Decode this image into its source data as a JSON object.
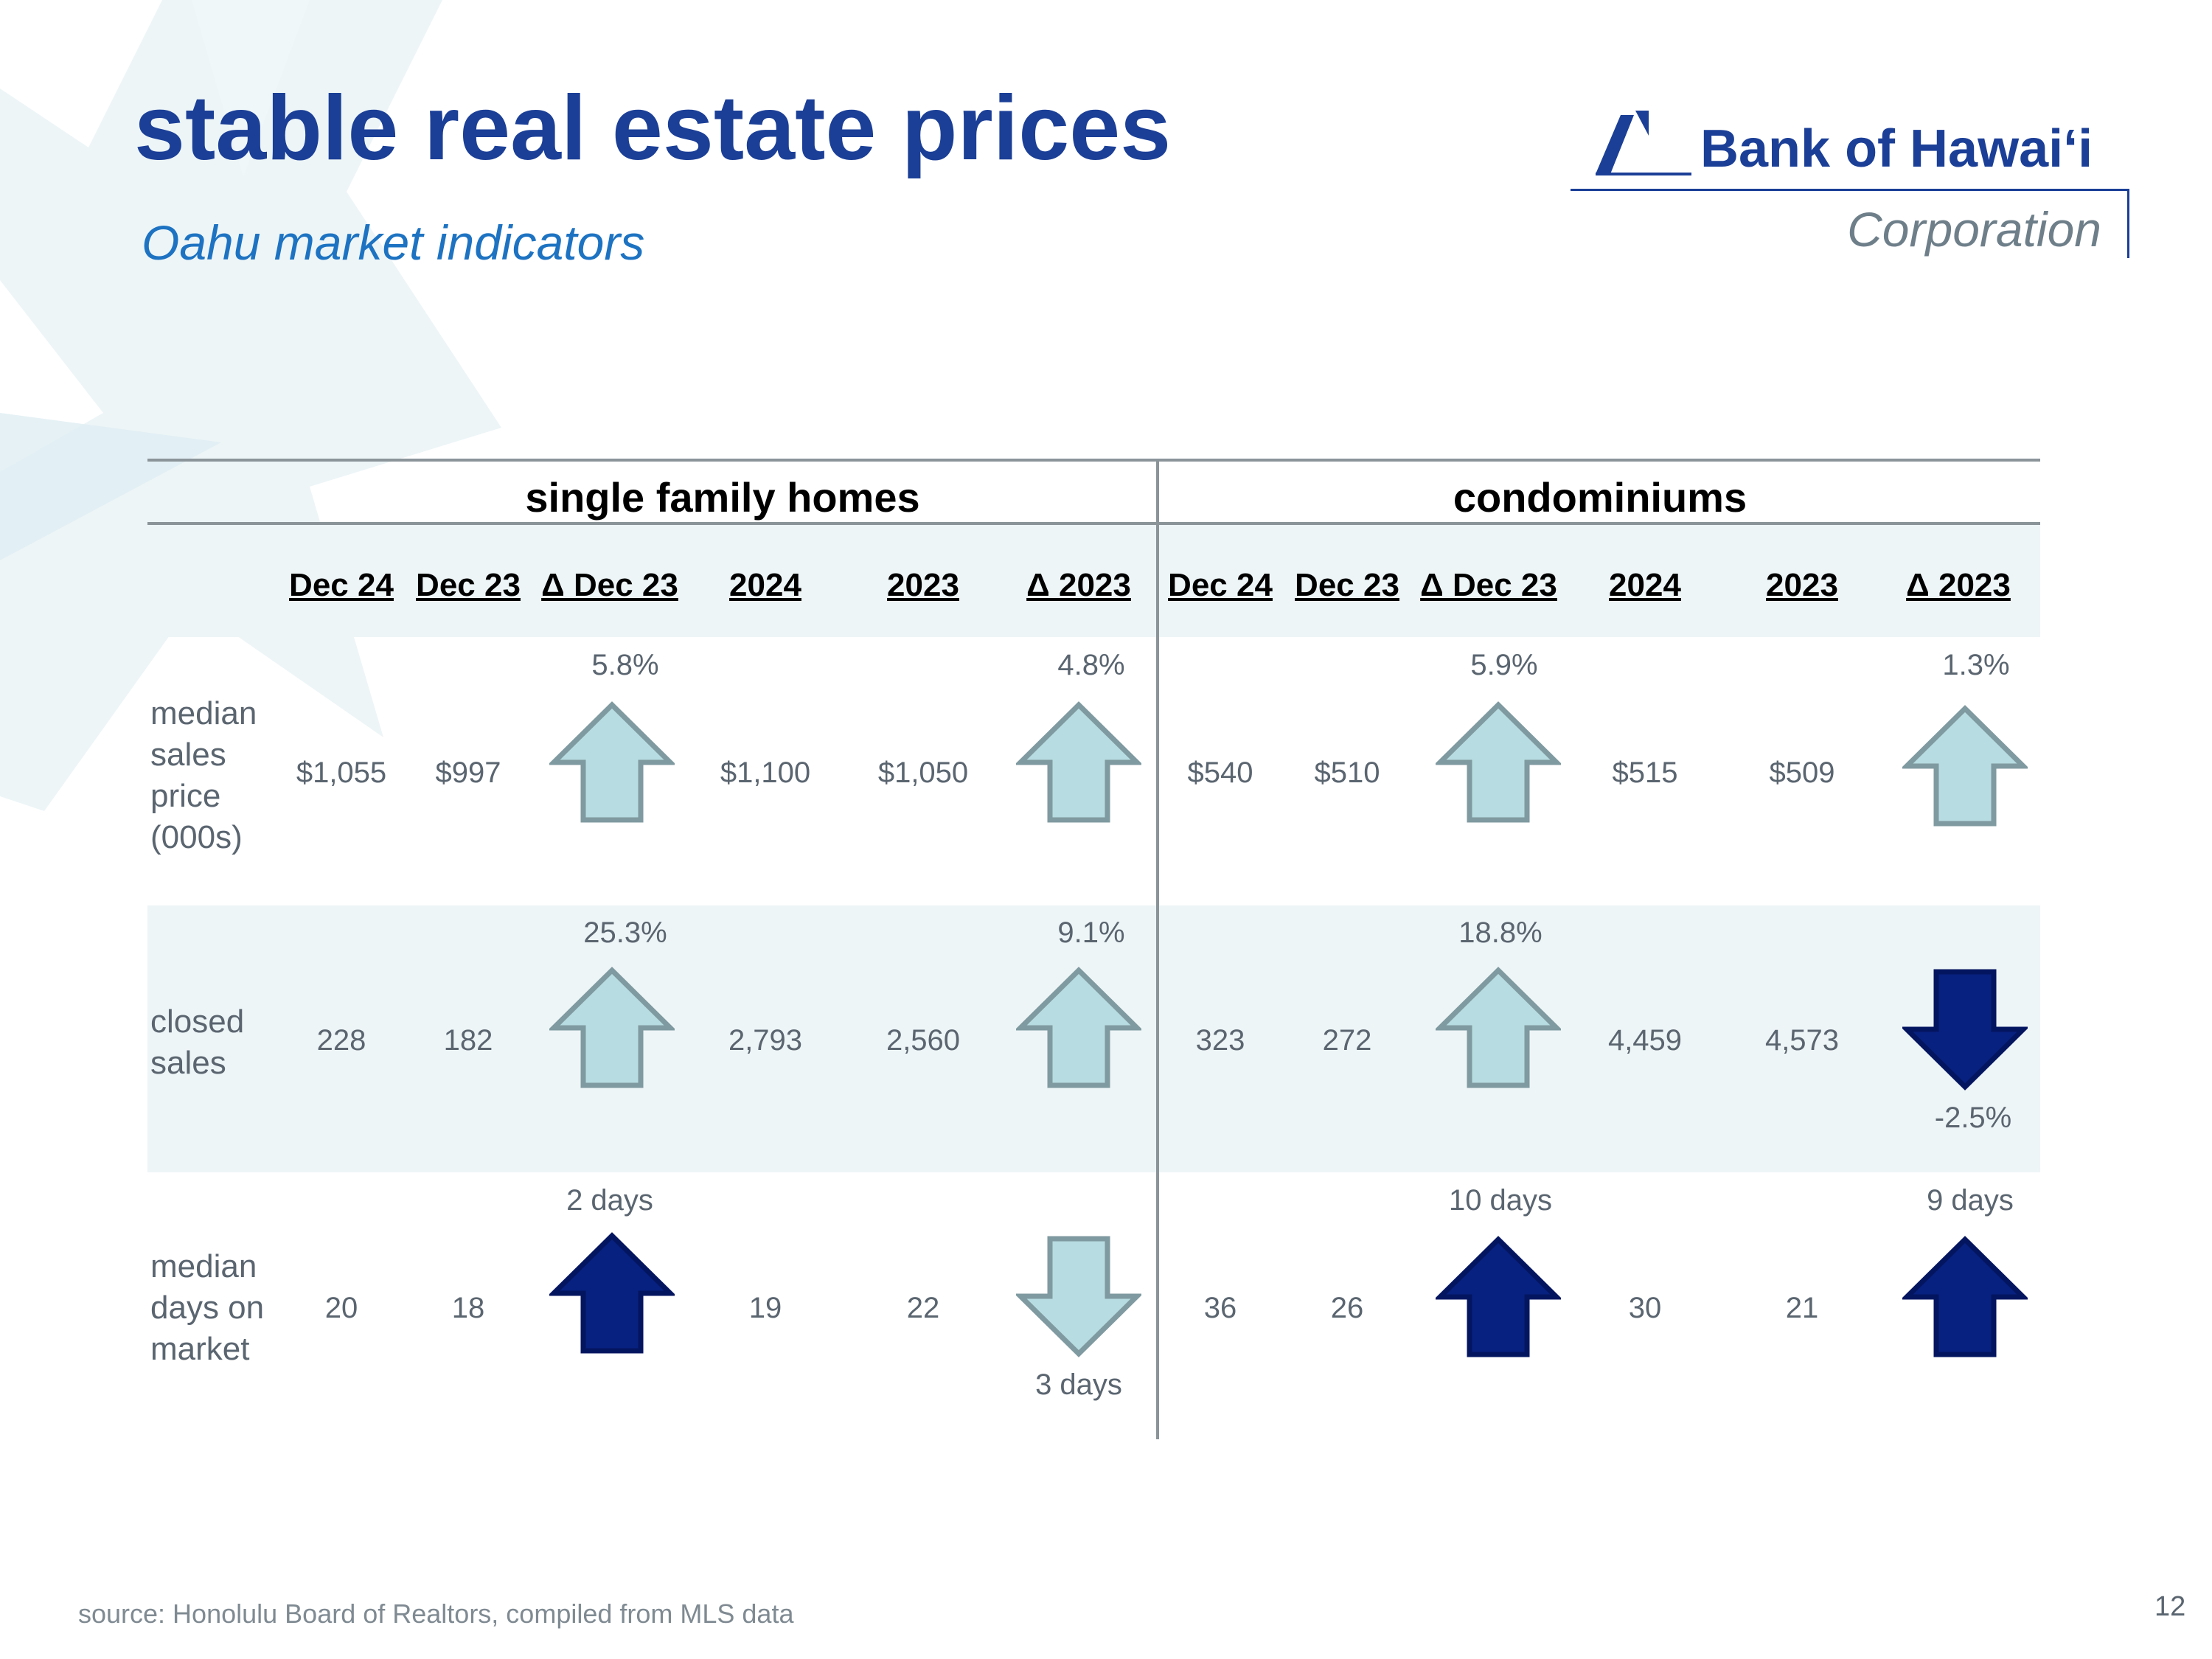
{
  "header": {
    "title": "stable real estate prices",
    "subtitle": "Oahu market indicators"
  },
  "logo": {
    "name": "Bank of Hawaiʻi",
    "corporation": "Corporation",
    "brand_color": "#1b3f97"
  },
  "table": {
    "groups": [
      "single family homes",
      "condominiums"
    ],
    "columns": [
      "Dec 24",
      "Dec 23",
      "Δ Dec 23",
      "2024",
      "2023",
      "Δ 2023",
      "Dec 24",
      "Dec 23",
      "Δ Dec 23",
      "2024",
      "2023",
      "Δ 2023"
    ],
    "rows": [
      {
        "label": "median sales price (000s)",
        "sfh": {
          "dec24": "$1,055",
          "dec23": "$997",
          "chg_dec": "5.8%",
          "y2024": "$1,100",
          "y2023": "$1,050",
          "chg_year": "4.8%"
        },
        "condo": {
          "dec24": "$540",
          "dec23": "$510",
          "chg_dec": "5.9%",
          "y2024": "$515",
          "y2023": "$509",
          "chg_year": "1.3%"
        },
        "arrows": [
          "up-light",
          "up-light",
          "up-light",
          "up-light"
        ]
      },
      {
        "label": "closed sales",
        "sfh": {
          "dec24": "228",
          "dec23": "182",
          "chg_dec": "25.3%",
          "y2024": "2,793",
          "y2023": "2,560",
          "chg_year": "9.1%"
        },
        "condo": {
          "dec24": "323",
          "dec23": "272",
          "chg_dec": "18.8%",
          "y2024": "4,459",
          "y2023": "4,573",
          "chg_year": "-2.5%"
        },
        "arrows": [
          "up-light",
          "up-light",
          "up-light",
          "down-dark"
        ]
      },
      {
        "label": "median days on market",
        "sfh": {
          "dec24": "20",
          "dec23": "18",
          "chg_dec": "2 days",
          "y2024": "19",
          "y2023": "22",
          "chg_year": "3 days"
        },
        "condo": {
          "dec24": "36",
          "dec23": "26",
          "chg_dec": "10 days",
          "y2024": "30",
          "y2023": "21",
          "chg_year": "9 days"
        },
        "arrows": [
          "up-dark",
          "down-light",
          "up-dark",
          "up-dark"
        ]
      }
    ],
    "arrow_colors": {
      "light_fill": "#b7dce1",
      "light_stroke": "#7f9aa0",
      "dark_fill": "#072180",
      "dark_stroke": "#041560"
    }
  },
  "footer": {
    "source": "source: Honolulu Board of Realtors, compiled from MLS data",
    "page_number": "12"
  }
}
